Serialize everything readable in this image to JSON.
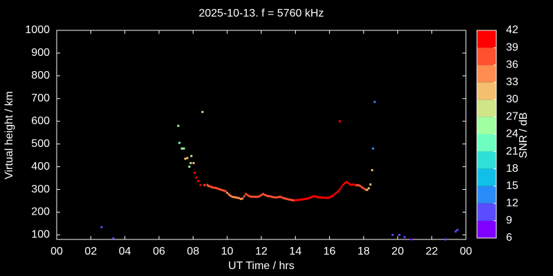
{
  "chart_data": {
    "type": "scatter",
    "title": "2025-10-13. f = 5760 kHz",
    "x_label": "UT Time / hrs",
    "y_label": "Virtual height / km",
    "xlim": [
      0,
      24
    ],
    "xticks": [
      {
        "value": 0,
        "label": "00"
      },
      {
        "value": 2,
        "label": "02"
      },
      {
        "value": 4,
        "label": "04"
      },
      {
        "value": 6,
        "label": "06"
      },
      {
        "value": 8,
        "label": "08"
      },
      10,
      12,
      14,
      16,
      18,
      20,
      22,
      {
        "value": 24,
        "label": "00"
      }
    ],
    "ylim": [
      80,
      1000
    ],
    "yticks": [
      100,
      200,
      300,
      400,
      500,
      600,
      700,
      800,
      900,
      1000
    ],
    "x": [
      2.63,
      3.32,
      7.13,
      7.2,
      7.34,
      7.46,
      7.54,
      7.66,
      7.78,
      7.86,
      7.9,
      8.03,
      8.1,
      8.19,
      8.3,
      8.43,
      8.55,
      8.67,
      8.84,
      8.9,
      9.0,
      9.1,
      9.2,
      9.3,
      9.4,
      9.5,
      9.6,
      9.7,
      9.8,
      9.9,
      10.0,
      10.1,
      10.2,
      10.3,
      10.4,
      10.5,
      10.6,
      10.7,
      10.8,
      10.9,
      11.0,
      11.1,
      11.2,
      11.3,
      11.4,
      11.5,
      11.6,
      11.7,
      11.8,
      11.9,
      12.0,
      12.1,
      12.2,
      12.3,
      12.4,
      12.5,
      12.6,
      12.7,
      12.8,
      12.9,
      13.0,
      13.1,
      13.2,
      13.3,
      13.4,
      13.5,
      13.6,
      13.7,
      13.8,
      13.9,
      14.0,
      14.1,
      14.2,
      14.3,
      14.4,
      14.5,
      14.6,
      14.7,
      14.8,
      14.9,
      15.0,
      15.1,
      15.2,
      15.3,
      15.4,
      15.5,
      15.6,
      15.7,
      15.8,
      15.9,
      16.0,
      16.1,
      16.2,
      16.3,
      16.4,
      16.5,
      16.6,
      16.7,
      16.8,
      16.9,
      17.0,
      17.1,
      17.2,
      17.3,
      17.4,
      17.5,
      17.6,
      17.7,
      17.8,
      17.9,
      18.0,
      18.1,
      18.2,
      18.3,
      18.4,
      16.6,
      18.5,
      18.55,
      18.65,
      19.7,
      20.1,
      20.4,
      20.8,
      22.8,
      23.4,
      23.5
    ],
    "values": [
      134,
      85,
      580,
      505,
      480,
      480,
      435,
      438,
      400,
      416,
      447,
      416,
      373,
      352,
      337,
      319,
      641,
      319,
      320,
      315,
      313,
      310,
      308,
      307,
      305,
      302,
      300,
      297,
      295,
      292,
      285,
      278,
      272,
      268,
      266,
      265,
      263,
      262,
      258,
      260,
      270,
      280,
      275,
      270,
      268,
      268,
      268,
      267,
      268,
      270,
      275,
      280,
      276,
      273,
      270,
      270,
      268,
      266,
      265,
      265,
      266,
      268,
      265,
      262,
      260,
      258,
      256,
      255,
      253,
      252,
      252,
      253,
      254,
      255,
      256,
      257,
      258,
      260,
      262,
      265,
      268,
      270,
      268,
      266,
      265,
      265,
      264,
      264,
      263,
      263,
      265,
      268,
      272,
      278,
      285,
      292,
      300,
      310,
      320,
      328,
      332,
      328,
      322,
      320,
      322,
      320,
      318,
      319,
      315,
      310,
      305,
      300,
      298,
      305,
      322,
      600,
      385,
      480,
      685,
      100,
      100,
      90,
      80,
      80,
      115,
      122
    ],
    "snr": [
      10,
      10,
      25,
      21,
      24,
      26,
      30,
      30,
      25,
      28,
      28,
      31,
      39,
      40,
      40,
      40,
      29,
      36,
      38,
      38,
      38,
      38,
      38,
      38,
      38,
      38,
      38,
      38,
      36,
      36,
      33,
      33,
      33,
      33,
      33,
      33,
      33,
      33,
      33,
      33,
      37,
      37,
      37,
      37,
      37,
      37,
      37,
      37,
      37,
      37,
      37,
      37,
      37,
      37,
      37,
      37,
      37,
      37,
      37,
      37,
      37,
      37,
      37,
      37,
      37,
      37,
      37,
      37,
      37,
      37,
      39,
      39,
      39,
      39,
      39,
      39,
      39,
      39,
      39,
      39,
      39,
      39,
      39,
      39,
      39,
      39,
      39,
      39,
      39,
      39,
      39,
      39,
      39,
      39,
      39,
      39,
      40,
      40,
      40,
      40,
      40,
      40,
      40,
      40,
      40,
      40,
      38,
      38,
      38,
      38,
      38,
      38,
      32,
      32,
      31,
      39,
      30,
      13,
      14,
      11,
      11,
      9,
      8,
      10,
      11,
      11
    ],
    "colorbar": {
      "label": "SNR / dB",
      "lim": [
        6,
        42
      ],
      "ticks": [
        6,
        9,
        12,
        15,
        18,
        21,
        24,
        27,
        30,
        33,
        36,
        39,
        42
      ],
      "colors": [
        "#8000ff",
        "#5a4cff",
        "#2a8cf8",
        "#10c0e8",
        "#2ee0d8",
        "#6cffc0",
        "#a0ffa0",
        "#d0e488",
        "#f4c070",
        "#ff8c50",
        "#ff5030",
        "#ff0000"
      ]
    }
  }
}
